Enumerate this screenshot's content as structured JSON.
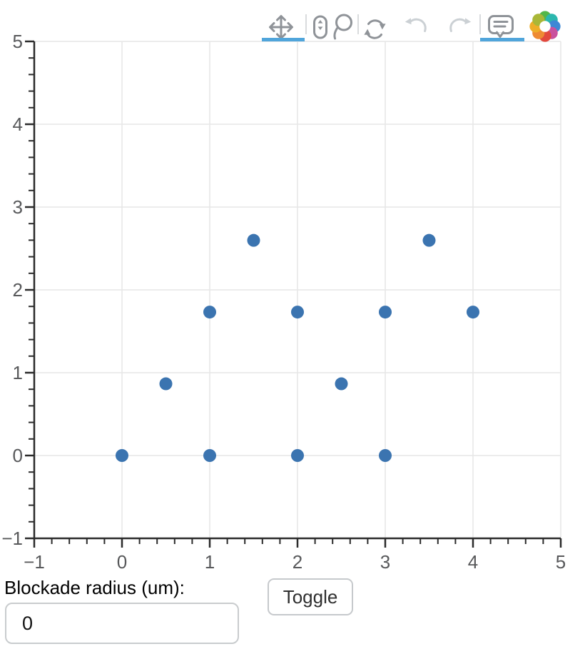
{
  "toolbar": {
    "tools": [
      {
        "id": "pan",
        "icon": "move-icon",
        "state": "active"
      },
      {
        "id": "wheel-zoom",
        "icon": "mouse-wheel-icon",
        "state": "enabled"
      },
      {
        "id": "lasso-select",
        "icon": "lasso-icon",
        "state": "enabled"
      },
      {
        "id": "reset",
        "icon": "reset-icon",
        "state": "enabled"
      },
      {
        "id": "undo",
        "icon": "undo-icon",
        "state": "disabled"
      },
      {
        "id": "redo",
        "icon": "redo-icon",
        "state": "disabled"
      },
      {
        "id": "hover",
        "icon": "hover-icon",
        "state": "active"
      }
    ],
    "logo_icon": "bokeh-logo",
    "logo_colors": [
      "#53B648",
      "#2BB7AE",
      "#3E88D5",
      "#C9519E",
      "#E2483D",
      "#EE8A33",
      "#EDAE28",
      "#A9B737"
    ]
  },
  "chart_data": {
    "type": "scatter",
    "title": "",
    "xlabel": "",
    "ylabel": "",
    "xlim": [
      -1,
      5
    ],
    "ylim": [
      -1,
      5
    ],
    "x_ticks": [
      -1,
      0,
      1,
      2,
      3,
      4,
      5
    ],
    "y_ticks": [
      -1,
      0,
      1,
      2,
      3,
      4,
      5
    ],
    "x_tick_labels": [
      "−1",
      "0",
      "1",
      "2",
      "3",
      "4",
      "5"
    ],
    "y_tick_labels": [
      "−1",
      "0",
      "1",
      "2",
      "3",
      "4",
      "5"
    ],
    "minor_tick_step": 0.2,
    "grid": true,
    "legend": "none",
    "marker": {
      "shape": "circle",
      "radius": 9
    },
    "points": [
      {
        "x": 0,
        "y": 0
      },
      {
        "x": 1,
        "y": 0
      },
      {
        "x": 2,
        "y": 0
      },
      {
        "x": 3,
        "y": 0
      },
      {
        "x": 0.5,
        "y": 0.866
      },
      {
        "x": 2.5,
        "y": 0.866
      },
      {
        "x": 1,
        "y": 1.732
      },
      {
        "x": 2,
        "y": 1.732
      },
      {
        "x": 3,
        "y": 1.732
      },
      {
        "x": 4,
        "y": 1.732
      },
      {
        "x": 1.5,
        "y": 2.598
      },
      {
        "x": 3.5,
        "y": 2.598
      }
    ]
  },
  "controls": {
    "blockade_label": "Blockade radius (um):",
    "blockade_value": "0",
    "toggle_label": "Toggle"
  },
  "colors": {
    "marker": "#3B74B0",
    "active_tool_indicator": "#50A5DB",
    "axis_line": "#2B2B2B",
    "tick_label": "#58595B",
    "grid_line": "#E6E6E6",
    "icon_enabled": "#8F9398",
    "icon_disabled": "#CBD0D4"
  }
}
